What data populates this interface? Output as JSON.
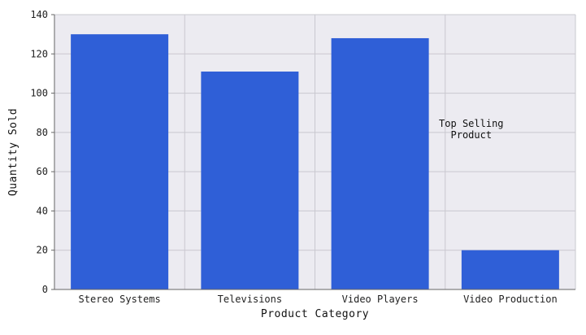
{
  "chart_data": {
    "type": "bar",
    "title": "",
    "xlabel": "Product Category",
    "ylabel": "Quantity Sold",
    "categories": [
      "Stereo Systems",
      "Televisions",
      "Video Players",
      "Video Production"
    ],
    "values": [
      130,
      111,
      128,
      20
    ],
    "ylim": [
      0,
      140
    ],
    "yticks": [
      0,
      20,
      40,
      60,
      80,
      100,
      120,
      140
    ],
    "grid": true,
    "legend": "none",
    "annotation": {
      "lines": [
        "Top Selling",
        "Product"
      ]
    },
    "colors": {
      "bar": "#2f5fd7",
      "plot_background": "#ecebf1",
      "grid": "#c9c8cf",
      "axis": "#666666"
    }
  }
}
